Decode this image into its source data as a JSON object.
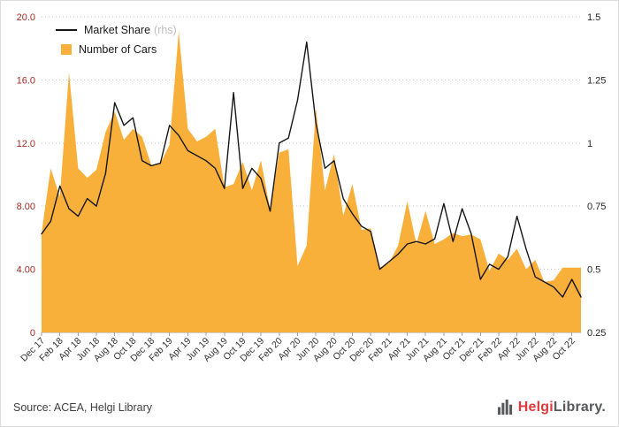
{
  "legend": {
    "line_label": "Market Share",
    "line_suffix": "(rhs)",
    "area_label": "Number of Cars"
  },
  "footer": {
    "source": "Source: ACEA, Helgi Library",
    "logo_brand": "Helgi",
    "logo_suffix": "Library."
  },
  "colors": {
    "area": "#f9b03b",
    "line": "#161616",
    "left_axis_labels": "#9e2b25",
    "right_axis_labels": "#262626",
    "x_labels": "#333333",
    "grid": "#c6c6c6",
    "baseline": "#a0a0a0",
    "legend_rhs": "#bdbdbd",
    "logo_red": "#e03a3e",
    "logo_gray": "#58595b"
  },
  "chart_data": {
    "type": "area+line",
    "title": "",
    "x": [
      "Dec 17",
      "Jan 18",
      "Feb 18",
      "Mar 18",
      "Apr 18",
      "May 18",
      "Jun 18",
      "Jul 18",
      "Aug 18",
      "Sep 18",
      "Oct 18",
      "Nov 18",
      "Dec 18",
      "Jan 19",
      "Feb 19",
      "Mar 19",
      "Apr 19",
      "May 19",
      "Jun 19",
      "Jul 19",
      "Aug 19",
      "Sep 19",
      "Oct 19",
      "Nov 19",
      "Dec 19",
      "Jan 20",
      "Feb 20",
      "Mar 20",
      "Apr 20",
      "May 20",
      "Jun 20",
      "Jul 20",
      "Aug 20",
      "Sep 20",
      "Oct 20",
      "Nov 20",
      "Dec 20",
      "Jan 21",
      "Feb 21",
      "Mar 21",
      "Apr 21",
      "May 21",
      "Jun 21",
      "Jul 21",
      "Aug 21",
      "Sep 21",
      "Oct 21",
      "Nov 21",
      "Dec 21",
      "Jan 22",
      "Feb 22",
      "Mar 22",
      "Apr 22",
      "May 22",
      "Jun 22",
      "Jul 22",
      "Aug 22",
      "Sep 22",
      "Oct 22",
      "Nov 22"
    ],
    "x_tick_every": 2,
    "series": [
      {
        "name": "Market Share (rhs)",
        "type": "line",
        "axis": "right",
        "values": [
          0.64,
          0.69,
          0.83,
          0.74,
          0.71,
          0.78,
          0.75,
          0.88,
          1.16,
          1.07,
          1.1,
          0.93,
          0.91,
          0.92,
          1.07,
          1.03,
          0.97,
          0.95,
          0.93,
          0.9,
          0.82,
          1.2,
          0.82,
          0.9,
          0.86,
          0.73,
          1.0,
          1.02,
          1.17,
          1.4,
          1.08,
          0.9,
          0.93,
          0.78,
          0.72,
          0.67,
          0.65,
          0.5,
          0.53,
          0.56,
          0.6,
          0.61,
          0.6,
          0.62,
          0.76,
          0.61,
          0.74,
          0.64,
          0.46,
          0.52,
          0.5,
          0.55,
          0.71,
          0.58,
          0.47,
          0.45,
          0.43,
          0.39,
          0.46,
          0.39
        ]
      },
      {
        "name": "Number of Cars",
        "type": "area",
        "axis": "left",
        "values": [
          6.3,
          10.4,
          8.6,
          16.5,
          10.4,
          9.8,
          10.3,
          12.7,
          14.0,
          12.2,
          12.9,
          12.4,
          10.6,
          10.7,
          11.9,
          19.1,
          12.9,
          12.1,
          12.4,
          12.9,
          9.2,
          9.4,
          10.8,
          9.0,
          10.9,
          7.8,
          11.4,
          11.6,
          4.2,
          5.5,
          14.2,
          9.0,
          11.3,
          7.4,
          9.4,
          6.5,
          6.6,
          4.1,
          4.4,
          5.5,
          8.3,
          5.6,
          7.7,
          5.6,
          5.9,
          6.3,
          6.1,
          6.2,
          5.9,
          3.9,
          5.0,
          4.6,
          5.3,
          4.0,
          4.6,
          3.2,
          3.3,
          4.1,
          4.1,
          4.1
        ]
      }
    ],
    "left_axis": {
      "min": 0,
      "max": 20,
      "tick_values": [
        20,
        16,
        12,
        8,
        4,
        0
      ],
      "tick_labels": [
        "20.0",
        "16.0",
        "12.0",
        "8.00",
        "4.00",
        "0"
      ]
    },
    "right_axis": {
      "min": 0.25,
      "max": 1.5,
      "tick_values": [
        1.5,
        1.25,
        1,
        0.75,
        0.5,
        0.25
      ],
      "tick_labels": [
        "1.5",
        "1.25",
        "1",
        "0.75",
        "0.5",
        "0.25"
      ]
    },
    "grid": true,
    "legend_position": "top-left"
  }
}
